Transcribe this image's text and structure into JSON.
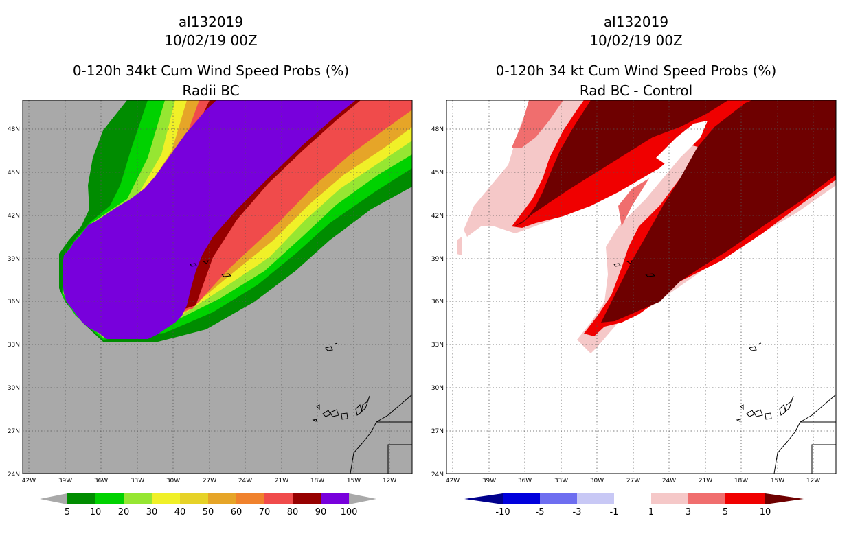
{
  "left_panel": {
    "storm_id": "al132019",
    "date": "10/02/19 00Z",
    "product": "0-120h 34kt Cum Wind Speed Probs (%)",
    "subtitle": "Radii BC",
    "lon_ticks": [
      "42W",
      "39W",
      "36W",
      "33W",
      "30W",
      "27W",
      "24W",
      "21W",
      "18W",
      "15W",
      "12W"
    ],
    "lat_ticks": [
      "48N",
      "45N",
      "42N",
      "39N",
      "36N",
      "33N",
      "30N",
      "27N",
      "24N"
    ],
    "colorbar": {
      "labels": [
        "5",
        "10",
        "20",
        "30",
        "40",
        "50",
        "60",
        "70",
        "80",
        "90",
        "100"
      ],
      "colors": [
        "#008c00",
        "#00d200",
        "#96e632",
        "#f0f028",
        "#e6d228",
        "#e6a528",
        "#f0822d",
        "#f04b4b",
        "#960000",
        "#7800dc"
      ],
      "under_color": "#a9a9a9",
      "over_color": "#a9a9a9"
    },
    "background": "#a9a9a9"
  },
  "right_panel": {
    "storm_id": "al132019",
    "date": "10/02/19 00Z",
    "product": "0-120h 34 kt Cum Wind Speed Probs (%)",
    "subtitle": "Rad BC - Control",
    "lon_ticks": [
      "42W",
      "39W",
      "36W",
      "33W",
      "30W",
      "27W",
      "24W",
      "21W",
      "18W",
      "15W",
      "12W"
    ],
    "lat_ticks": [
      "48N",
      "45N",
      "42N",
      "39N",
      "36N",
      "33N",
      "30N",
      "27N",
      "24N"
    ],
    "colorbar": {
      "labels": [
        "-10",
        "-5",
        "-3",
        "-1",
        "1",
        "3",
        "5",
        "10"
      ],
      "colors": [
        "#0000dc",
        "#6e6ef0",
        "#c8c8f5",
        "#ffffff",
        "#f5c8c8",
        "#f06e6e",
        "#f00000"
      ],
      "under_color": "#00008c",
      "over_color": "#6e0000"
    },
    "background": "#ffffff"
  }
}
